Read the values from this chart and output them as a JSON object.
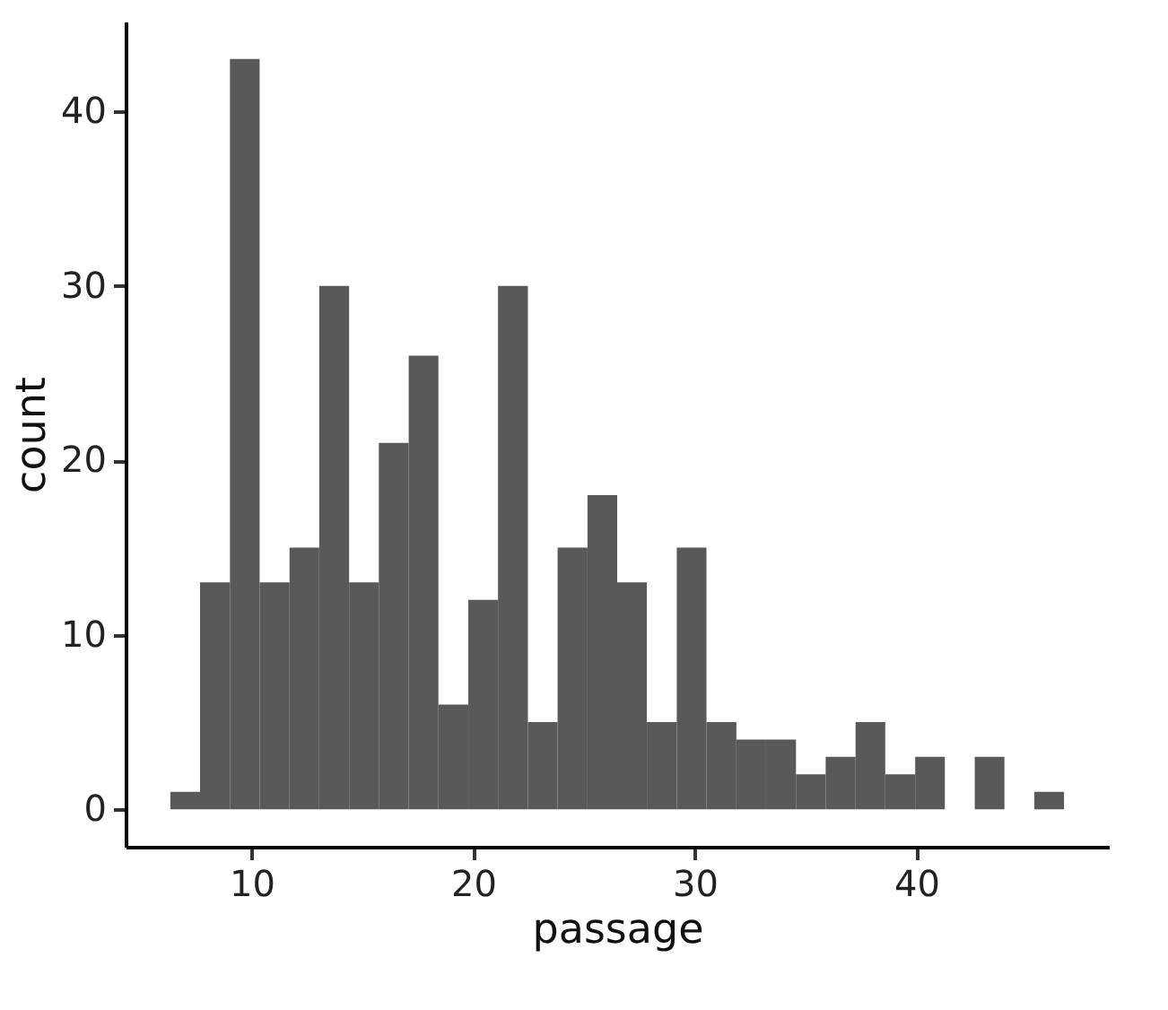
{
  "chart_data": {
    "type": "histogram",
    "xlabel": "passage",
    "ylabel": "count",
    "bins": [
      6.33,
      7.67,
      9.02,
      10.36,
      11.71,
      13.05,
      14.4,
      15.74,
      17.09,
      18.43,
      19.78,
      21.12,
      22.47,
      23.81,
      25.16,
      26.5,
      27.84,
      29.19,
      30.53,
      31.88,
      33.22,
      34.57,
      35.91,
      37.26,
      38.6,
      39.95,
      41.29,
      42.64,
      43.98,
      45.33,
      46.67
    ],
    "values": [
      1,
      13,
      43,
      13,
      15,
      30,
      13,
      21,
      26,
      6,
      12,
      30,
      5,
      15,
      18,
      13,
      5,
      15,
      5,
      4,
      4,
      2,
      3,
      5,
      2,
      3,
      0,
      3,
      0,
      1
    ],
    "color": "#595959",
    "xlim": [
      4.31,
      48.69
    ],
    "xticks": [
      10,
      20,
      30,
      40
    ],
    "ylim": [
      -2.15,
      45.15
    ],
    "yticks": [
      0,
      10,
      20,
      30,
      40
    ],
    "grid": false
  }
}
